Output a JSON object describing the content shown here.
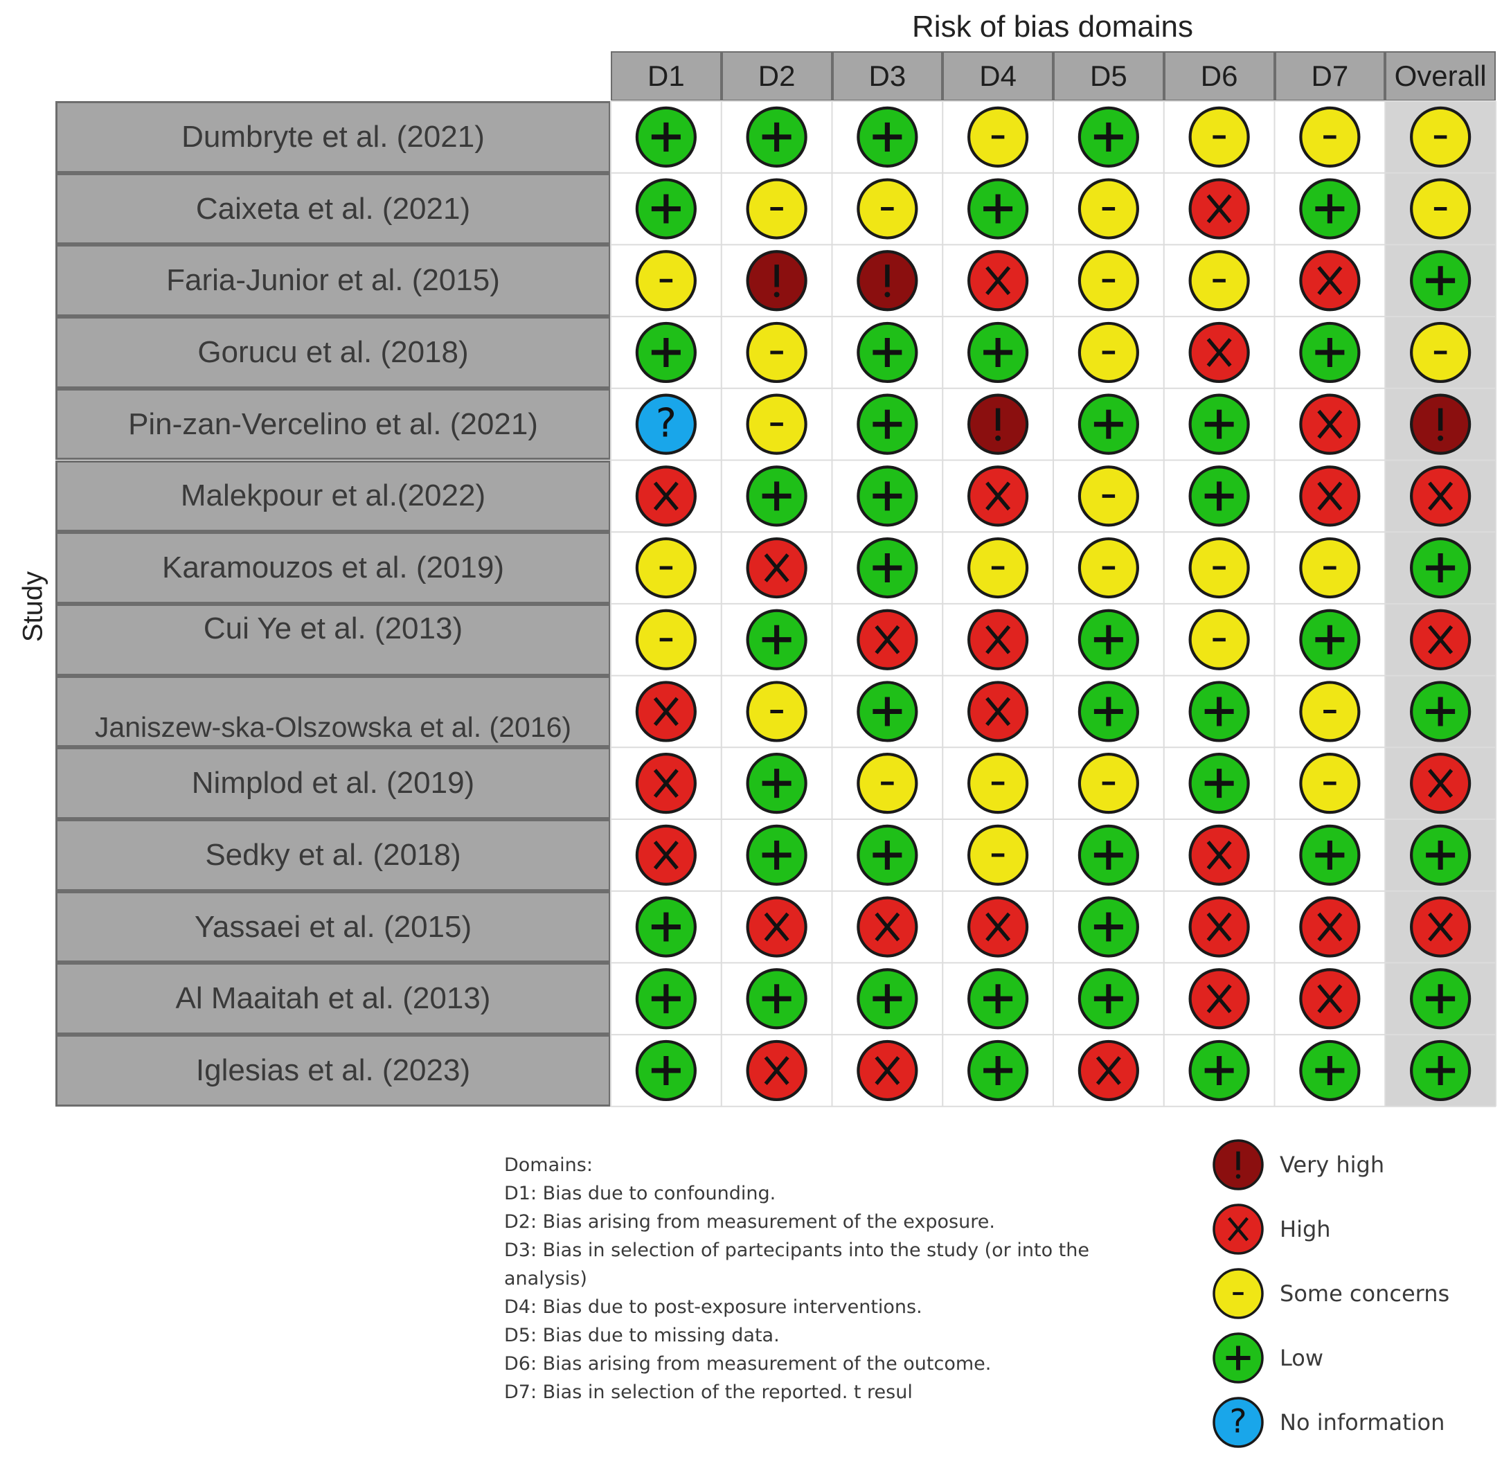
{
  "chart_data": {
    "type": "table",
    "title": "Risk of bias domains",
    "ylabel": "Study",
    "columns": [
      "D1",
      "D2",
      "D3",
      "D4",
      "D5",
      "D6",
      "D7",
      "Overall"
    ],
    "studies": [
      {
        "name": "Dumbryte et al. (2021)",
        "ratings": [
          "Low",
          "Low",
          "Low",
          "Some concerns",
          "Low",
          "Some concerns",
          "Some concerns",
          "Some concerns"
        ]
      },
      {
        "name": "Caixeta et al. (2021)",
        "ratings": [
          "Low",
          "Some concerns",
          "Some concerns",
          "Low",
          "Some concerns",
          "High",
          "Low",
          "Some concerns"
        ]
      },
      {
        "name": "Faria-Junior et al. (2015)",
        "ratings": [
          "Some concerns",
          "Very high",
          "Very high",
          "High",
          "Some concerns",
          "Some concerns",
          "High",
          "Low"
        ]
      },
      {
        "name": "Gorucu et al. (2018)",
        "ratings": [
          "Low",
          "Some concerns",
          "Low",
          "Low",
          "Some concerns",
          "High",
          "Low",
          "Some concerns"
        ]
      },
      {
        "name": "Pin-zan-Vercelino et al. (2021)",
        "ratings": [
          "No information",
          "Some concerns",
          "Low",
          "Very high",
          "Low",
          "Low",
          "High",
          "Very high"
        ]
      },
      {
        "name": "Malekpour et al.(2022)",
        "ratings": [
          "High",
          "Low",
          "Low",
          "High",
          "Some concerns",
          "Low",
          "High",
          "High"
        ]
      },
      {
        "name": "Karamouzos et al. (2019)",
        "ratings": [
          "Some concerns",
          "High",
          "Low",
          "Some concerns",
          "Some concerns",
          "Some concerns",
          "Some concerns",
          "Low"
        ]
      },
      {
        "name": "Cui Ye et al. (2013)",
        "ratings": [
          "Some concerns",
          "Low",
          "High",
          "High",
          "Low",
          "Some concerns",
          "Low",
          "High"
        ]
      },
      {
        "name": "Janiszew-ska-Olszowska et al. (2016)",
        "ratings": [
          "High",
          "Some concerns",
          "Low",
          "High",
          "Low",
          "Low",
          "Some concerns",
          "Low"
        ]
      },
      {
        "name": "Nimplod et al. (2019)",
        "ratings": [
          "High",
          "Low",
          "Some concerns",
          "Some concerns",
          "Some concerns",
          "Low",
          "Some concerns",
          "High"
        ]
      },
      {
        "name": "Sedky et al. (2018)",
        "ratings": [
          "High",
          "Low",
          "Low",
          "Some concerns",
          "Low",
          "High",
          "Low",
          "Low"
        ]
      },
      {
        "name": "Yassaei et al. (2015)",
        "ratings": [
          "Low",
          "High",
          "High",
          "High",
          "Low",
          "High",
          "High",
          "High"
        ]
      },
      {
        "name": "Al Maaitah et al. (2013)",
        "ratings": [
          "Low",
          "Low",
          "Low",
          "Low",
          "Low",
          "High",
          "High",
          "Low"
        ]
      },
      {
        "name": "Iglesias et al. (2023)",
        "ratings": [
          "Low",
          "High",
          "High",
          "Low",
          "High",
          "Low",
          "Low",
          "Low"
        ]
      }
    ],
    "domains_heading": "Domains:",
    "domain_notes": [
      "D1: Bias due to confounding.",
      "D2: Bias arising from measurement of the exposure.",
      "D3: Bias in selection of partecipants into the study (or into the analysis)",
      "D4: Bias due to post-exposure interventions.",
      "D5: Bias due to missing data.",
      "D6: Bias arising from measurement of the outcome.",
      "D7: Bias in selection of the reported. t resul"
    ],
    "legend": [
      {
        "label": "Very high",
        "symbol": "!",
        "color": "#8b0f0f"
      },
      {
        "label": "High",
        "symbol": "X",
        "color": "#e0231f"
      },
      {
        "label": "Some concerns",
        "symbol": "-",
        "color": "#f0e615"
      },
      {
        "label": "Low",
        "symbol": "+",
        "color": "#1fbf18"
      },
      {
        "label": "No information",
        "symbol": "?",
        "color": "#19a6ea"
      }
    ]
  }
}
